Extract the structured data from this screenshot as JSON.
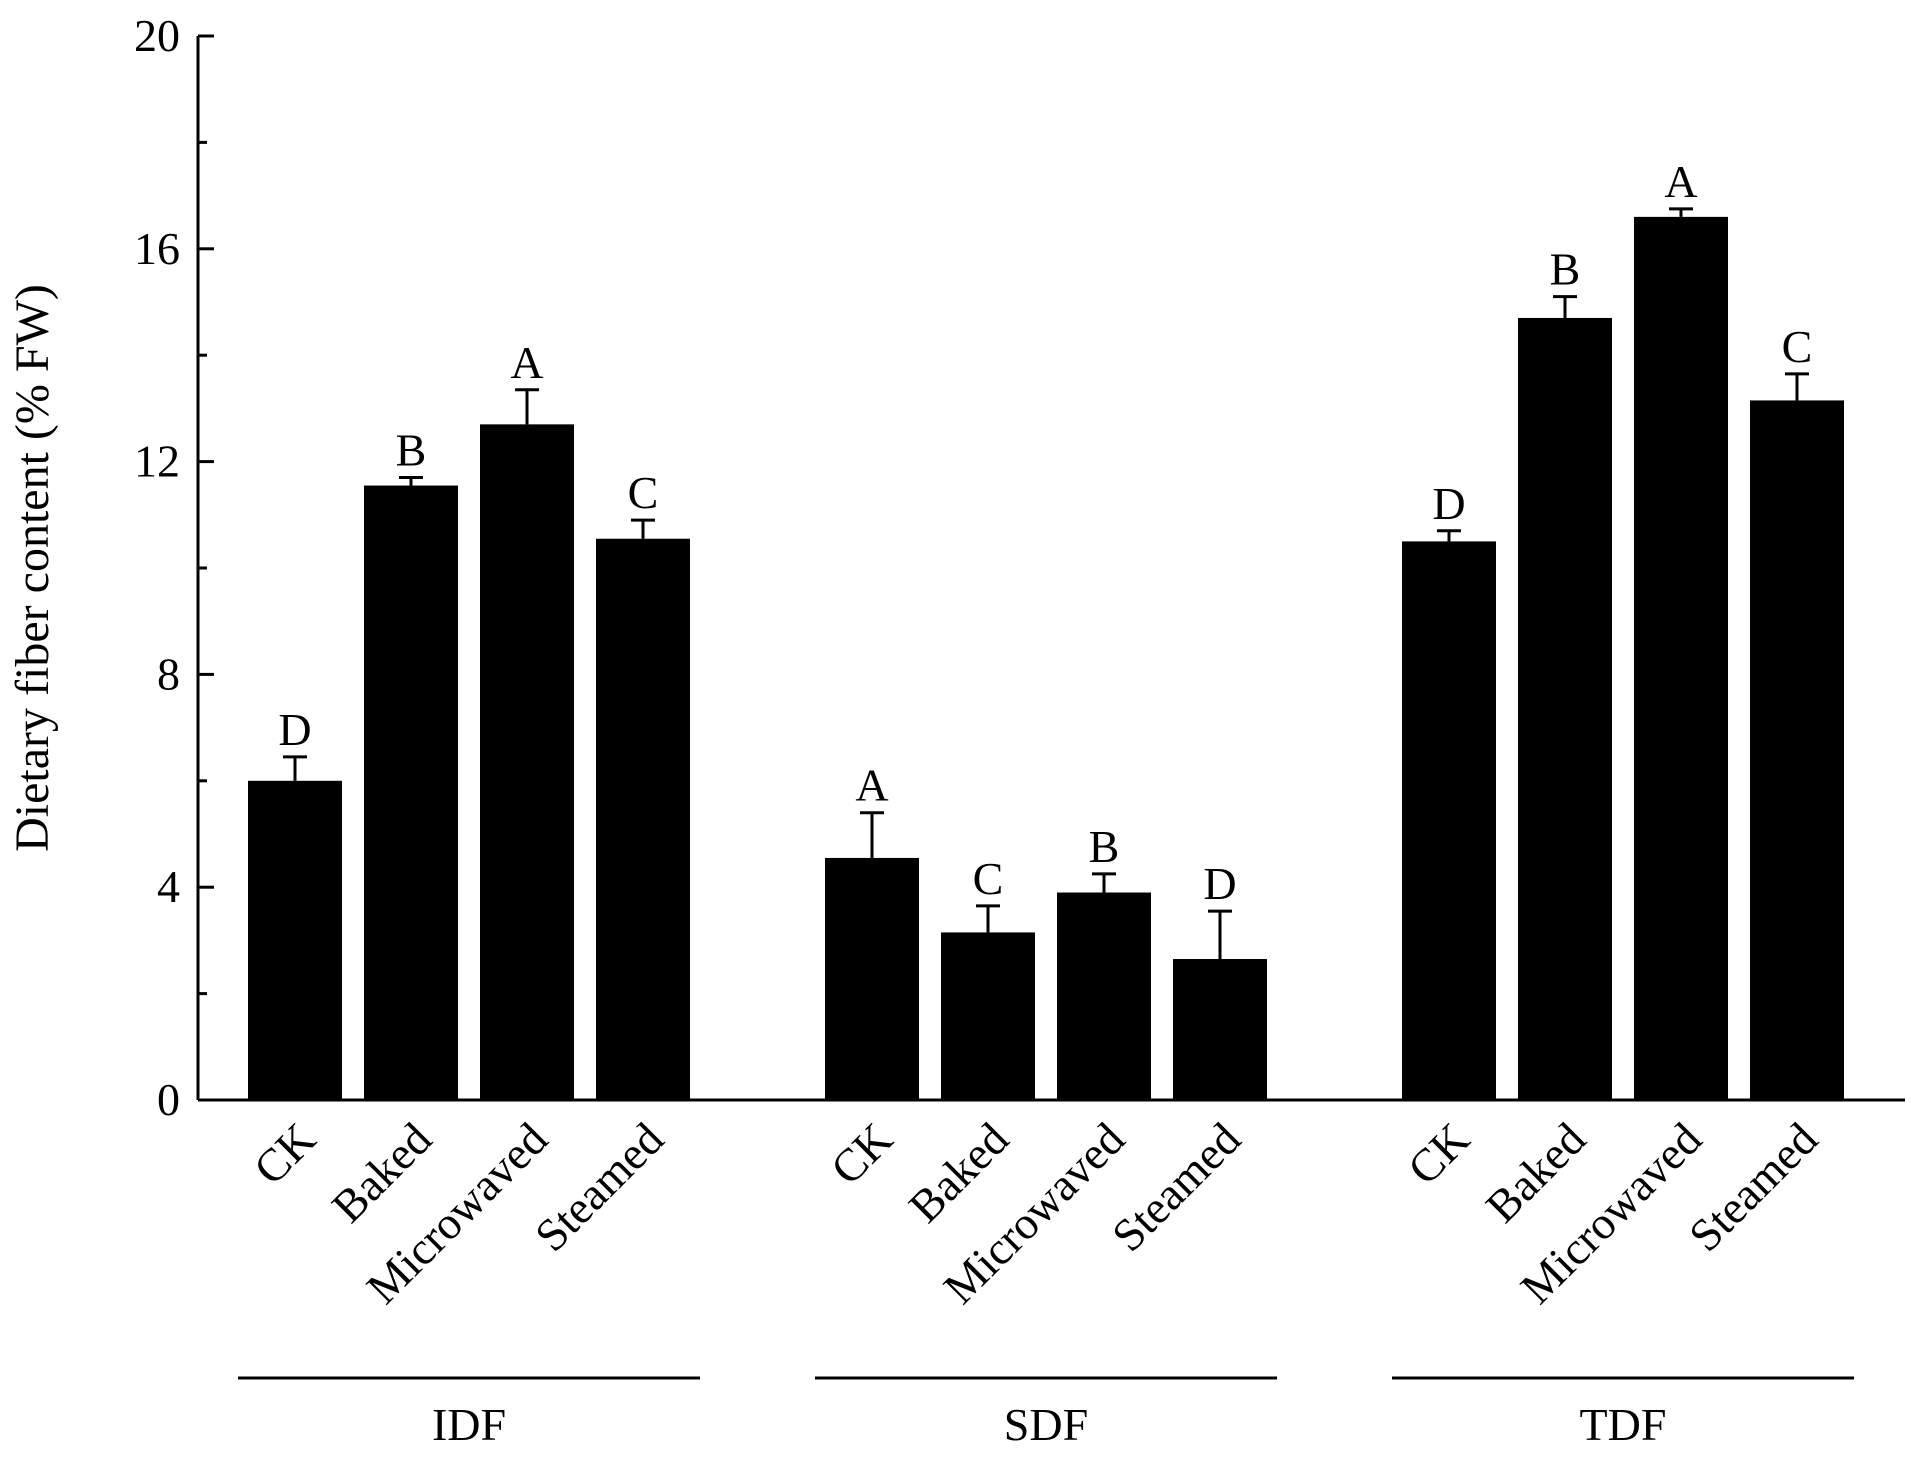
{
  "chart_data": {
    "type": "bar",
    "ylabel": "Dietary fiber content (% FW)",
    "xlabel": "",
    "ylim": [
      0,
      20
    ],
    "yticks": [
      0,
      4,
      8,
      12,
      16,
      20
    ],
    "grid": false,
    "legend": "none",
    "bar_color": "#000000",
    "categories": [
      "CK",
      "Baked",
      "Microwaved",
      "Steamed"
    ],
    "groups": [
      {
        "name": "IDF",
        "values": [
          6.0,
          11.55,
          12.7,
          10.55
        ],
        "errors": [
          0.45,
          0.15,
          0.65,
          0.35
        ],
        "letters": [
          "D",
          "B",
          "A",
          "C"
        ]
      },
      {
        "name": "SDF",
        "values": [
          4.55,
          3.15,
          3.9,
          2.65
        ],
        "errors": [
          0.85,
          0.5,
          0.35,
          0.9
        ],
        "letters": [
          "A",
          "C",
          "B",
          "D"
        ]
      },
      {
        "name": "TDF",
        "values": [
          10.5,
          14.7,
          16.6,
          13.15
        ],
        "errors": [
          0.2,
          0.4,
          0.15,
          0.5
        ],
        "letters": [
          "D",
          "B",
          "A",
          "C"
        ]
      }
    ]
  }
}
